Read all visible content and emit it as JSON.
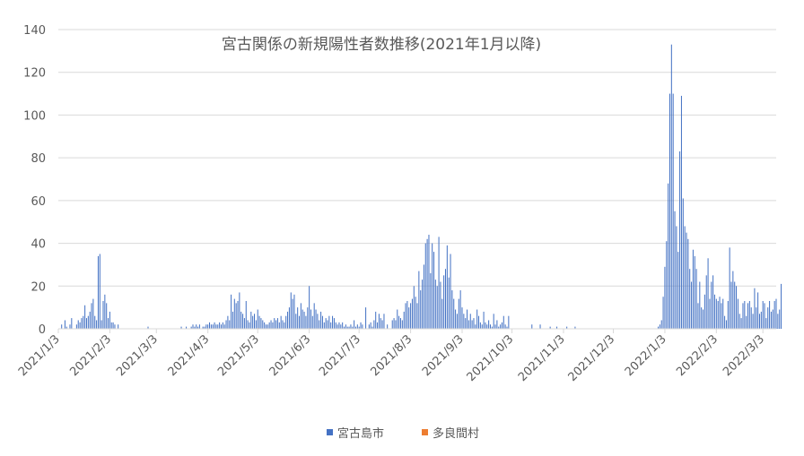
{
  "chart_data": {
    "type": "bar",
    "title": "宮古関係の新規陽性者数推移(2021年1月以降)",
    "xlabel": "",
    "ylabel": "",
    "x_tick_labels": [
      "2021/1/3",
      "2021/2/3",
      "2021/3/3",
      "2021/4/3",
      "2021/5/3",
      "2021/6/3",
      "2021/7/3",
      "2021/8/3",
      "2021/9/3",
      "2021/10/3",
      "2021/11/3",
      "2021/12/3",
      "2022/1/3",
      "2022/2/3",
      "2022/3/3"
    ],
    "x_tick_days": [
      0,
      31,
      59,
      90,
      120,
      151,
      181,
      212,
      243,
      273,
      304,
      334,
      365,
      396,
      424
    ],
    "x_range_days": [
      0,
      432
    ],
    "y_ticks": [
      0,
      20,
      40,
      60,
      80,
      100,
      120,
      140
    ],
    "ylim": [
      0,
      140
    ],
    "grid": "horizontal",
    "legend_position": "bottom",
    "colors": {
      "miyakojima": "#4472C4",
      "tarama": "#ED7D31",
      "grid": "#D9D9D9",
      "text": "#595959"
    },
    "series": [
      {
        "name": "宮古島市",
        "color": "#4472C4",
        "points": [
          [
            2,
            2
          ],
          [
            4,
            4
          ],
          [
            5,
            1
          ],
          [
            7,
            2
          ],
          [
            8,
            5
          ],
          [
            11,
            2
          ],
          [
            12,
            4
          ],
          [
            13,
            3
          ],
          [
            14,
            5
          ],
          [
            15,
            6
          ],
          [
            16,
            11
          ],
          [
            17,
            5
          ],
          [
            18,
            6
          ],
          [
            19,
            8
          ],
          [
            20,
            12
          ],
          [
            21,
            14
          ],
          [
            22,
            6
          ],
          [
            23,
            4
          ],
          [
            24,
            34
          ],
          [
            25,
            35
          ],
          [
            26,
            4
          ],
          [
            27,
            13
          ],
          [
            28,
            16
          ],
          [
            29,
            12
          ],
          [
            30,
            5
          ],
          [
            31,
            8
          ],
          [
            32,
            3
          ],
          [
            33,
            3
          ],
          [
            34,
            2
          ],
          [
            36,
            2
          ],
          [
            54,
            1
          ],
          [
            74,
            1
          ],
          [
            77,
            1
          ],
          [
            80,
            1
          ],
          [
            81,
            2
          ],
          [
            82,
            1
          ],
          [
            83,
            2
          ],
          [
            84,
            1
          ],
          [
            85,
            2
          ],
          [
            87,
            1
          ],
          [
            88,
            1
          ],
          [
            89,
            2
          ],
          [
            90,
            2
          ],
          [
            91,
            3
          ],
          [
            92,
            2
          ],
          [
            93,
            2
          ],
          [
            94,
            3
          ],
          [
            95,
            2
          ],
          [
            96,
            2
          ],
          [
            97,
            3
          ],
          [
            98,
            2
          ],
          [
            99,
            3
          ],
          [
            100,
            2
          ],
          [
            101,
            4
          ],
          [
            102,
            6
          ],
          [
            103,
            4
          ],
          [
            104,
            16
          ],
          [
            105,
            8
          ],
          [
            106,
            14
          ],
          [
            107,
            12
          ],
          [
            108,
            13
          ],
          [
            109,
            17
          ],
          [
            110,
            8
          ],
          [
            111,
            7
          ],
          [
            112,
            5
          ],
          [
            113,
            13
          ],
          [
            114,
            4
          ],
          [
            115,
            3
          ],
          [
            116,
            8
          ],
          [
            117,
            6
          ],
          [
            118,
            7
          ],
          [
            119,
            4
          ],
          [
            120,
            9
          ],
          [
            121,
            6
          ],
          [
            122,
            5
          ],
          [
            123,
            4
          ],
          [
            124,
            3
          ],
          [
            125,
            2
          ],
          [
            126,
            2
          ],
          [
            127,
            3
          ],
          [
            128,
            4
          ],
          [
            129,
            3
          ],
          [
            130,
            5
          ],
          [
            131,
            4
          ],
          [
            132,
            5
          ],
          [
            133,
            3
          ],
          [
            134,
            6
          ],
          [
            135,
            4
          ],
          [
            136,
            3
          ],
          [
            137,
            6
          ],
          [
            138,
            8
          ],
          [
            139,
            10
          ],
          [
            140,
            17
          ],
          [
            141,
            14
          ],
          [
            142,
            16
          ],
          [
            143,
            7
          ],
          [
            144,
            10
          ],
          [
            145,
            6
          ],
          [
            146,
            12
          ],
          [
            147,
            9
          ],
          [
            148,
            8
          ],
          [
            149,
            6
          ],
          [
            150,
            10
          ],
          [
            151,
            20
          ],
          [
            152,
            9
          ],
          [
            153,
            6
          ],
          [
            154,
            12
          ],
          [
            155,
            9
          ],
          [
            156,
            7
          ],
          [
            157,
            4
          ],
          [
            158,
            8
          ],
          [
            159,
            6
          ],
          [
            160,
            3
          ],
          [
            161,
            5
          ],
          [
            162,
            4
          ],
          [
            163,
            6
          ],
          [
            164,
            3
          ],
          [
            165,
            6
          ],
          [
            166,
            5
          ],
          [
            167,
            3
          ],
          [
            168,
            2
          ],
          [
            169,
            3
          ],
          [
            170,
            2
          ],
          [
            171,
            3
          ],
          [
            172,
            1
          ],
          [
            173,
            2
          ],
          [
            174,
            1
          ],
          [
            175,
            1
          ],
          [
            176,
            2
          ],
          [
            177,
            1
          ],
          [
            178,
            4
          ],
          [
            179,
            1
          ],
          [
            180,
            2
          ],
          [
            181,
            1
          ],
          [
            182,
            3
          ],
          [
            183,
            2
          ],
          [
            185,
            10
          ],
          [
            187,
            2
          ],
          [
            188,
            3
          ],
          [
            189,
            1
          ],
          [
            190,
            4
          ],
          [
            191,
            8
          ],
          [
            192,
            3
          ],
          [
            193,
            7
          ],
          [
            194,
            5
          ],
          [
            195,
            4
          ],
          [
            196,
            7
          ],
          [
            198,
            2
          ],
          [
            201,
            4
          ],
          [
            202,
            5
          ],
          [
            203,
            4
          ],
          [
            204,
            9
          ],
          [
            205,
            6
          ],
          [
            206,
            5
          ],
          [
            207,
            4
          ],
          [
            208,
            8
          ],
          [
            209,
            12
          ],
          [
            210,
            13
          ],
          [
            211,
            10
          ],
          [
            212,
            12
          ],
          [
            213,
            14
          ],
          [
            214,
            20
          ],
          [
            215,
            15
          ],
          [
            216,
            12
          ],
          [
            217,
            27
          ],
          [
            218,
            18
          ],
          [
            219,
            23
          ],
          [
            220,
            30
          ],
          [
            221,
            40
          ],
          [
            222,
            42
          ],
          [
            223,
            44
          ],
          [
            224,
            26
          ],
          [
            225,
            40
          ],
          [
            226,
            36
          ],
          [
            227,
            23
          ],
          [
            228,
            20
          ],
          [
            229,
            43
          ],
          [
            230,
            22
          ],
          [
            231,
            14
          ],
          [
            232,
            25
          ],
          [
            233,
            28
          ],
          [
            234,
            39
          ],
          [
            235,
            24
          ],
          [
            236,
            35
          ],
          [
            237,
            18
          ],
          [
            238,
            14
          ],
          [
            239,
            9
          ],
          [
            240,
            7
          ],
          [
            241,
            14
          ],
          [
            242,
            18
          ],
          [
            243,
            10
          ],
          [
            244,
            7
          ],
          [
            245,
            5
          ],
          [
            246,
            9
          ],
          [
            247,
            4
          ],
          [
            248,
            7
          ],
          [
            249,
            4
          ],
          [
            250,
            5
          ],
          [
            251,
            2
          ],
          [
            252,
            9
          ],
          [
            253,
            6
          ],
          [
            254,
            3
          ],
          [
            255,
            2
          ],
          [
            256,
            8
          ],
          [
            257,
            3
          ],
          [
            258,
            2
          ],
          [
            259,
            4
          ],
          [
            260,
            2
          ],
          [
            261,
            1
          ],
          [
            262,
            7
          ],
          [
            263,
            2
          ],
          [
            264,
            4
          ],
          [
            265,
            1
          ],
          [
            266,
            2
          ],
          [
            267,
            3
          ],
          [
            268,
            6
          ],
          [
            269,
            2
          ],
          [
            270,
            1
          ],
          [
            271,
            6
          ],
          [
            285,
            2
          ],
          [
            290,
            2
          ],
          [
            296,
            1
          ],
          [
            300,
            1
          ],
          [
            306,
            1
          ],
          [
            311,
            1
          ],
          [
            361,
            1
          ],
          [
            362,
            2
          ],
          [
            363,
            4
          ],
          [
            364,
            15
          ],
          [
            365,
            29
          ],
          [
            366,
            41
          ],
          [
            367,
            68
          ],
          [
            368,
            110
          ],
          [
            369,
            133
          ],
          [
            370,
            110
          ],
          [
            371,
            55
          ],
          [
            372,
            48
          ],
          [
            373,
            36
          ],
          [
            374,
            83
          ],
          [
            375,
            109
          ],
          [
            376,
            61
          ],
          [
            377,
            48
          ],
          [
            378,
            45
          ],
          [
            379,
            42
          ],
          [
            380,
            28
          ],
          [
            381,
            22
          ],
          [
            382,
            37
          ],
          [
            383,
            34
          ],
          [
            384,
            28
          ],
          [
            385,
            12
          ],
          [
            386,
            22
          ],
          [
            387,
            10
          ],
          [
            388,
            9
          ],
          [
            389,
            16
          ],
          [
            390,
            25
          ],
          [
            391,
            33
          ],
          [
            392,
            14
          ],
          [
            393,
            22
          ],
          [
            394,
            25
          ],
          [
            395,
            16
          ],
          [
            396,
            14
          ],
          [
            397,
            13
          ],
          [
            398,
            15
          ],
          [
            399,
            12
          ],
          [
            400,
            14
          ],
          [
            401,
            6
          ],
          [
            402,
            4
          ],
          [
            403,
            13
          ],
          [
            404,
            38
          ],
          [
            405,
            22
          ],
          [
            406,
            27
          ],
          [
            407,
            22
          ],
          [
            408,
            20
          ],
          [
            409,
            14
          ],
          [
            410,
            7
          ],
          [
            411,
            5
          ],
          [
            412,
            12
          ],
          [
            413,
            13
          ],
          [
            414,
            6
          ],
          [
            415,
            12
          ],
          [
            416,
            13
          ],
          [
            417,
            10
          ],
          [
            418,
            7
          ],
          [
            419,
            19
          ],
          [
            420,
            10
          ],
          [
            421,
            17
          ],
          [
            422,
            7
          ],
          [
            423,
            8
          ],
          [
            424,
            13
          ],
          [
            425,
            12
          ],
          [
            426,
            5
          ],
          [
            427,
            10
          ],
          [
            428,
            13
          ],
          [
            429,
            8
          ],
          [
            430,
            9
          ],
          [
            431,
            13
          ],
          [
            432,
            14
          ],
          [
            433,
            7
          ],
          [
            434,
            9
          ],
          [
            435,
            21
          ]
        ]
      },
      {
        "name": "多良間村",
        "color": "#ED7D31",
        "points": [
          [
            120,
            0.3
          ],
          [
            151,
            0.3
          ],
          [
            236,
            0.3
          ]
        ]
      }
    ]
  }
}
